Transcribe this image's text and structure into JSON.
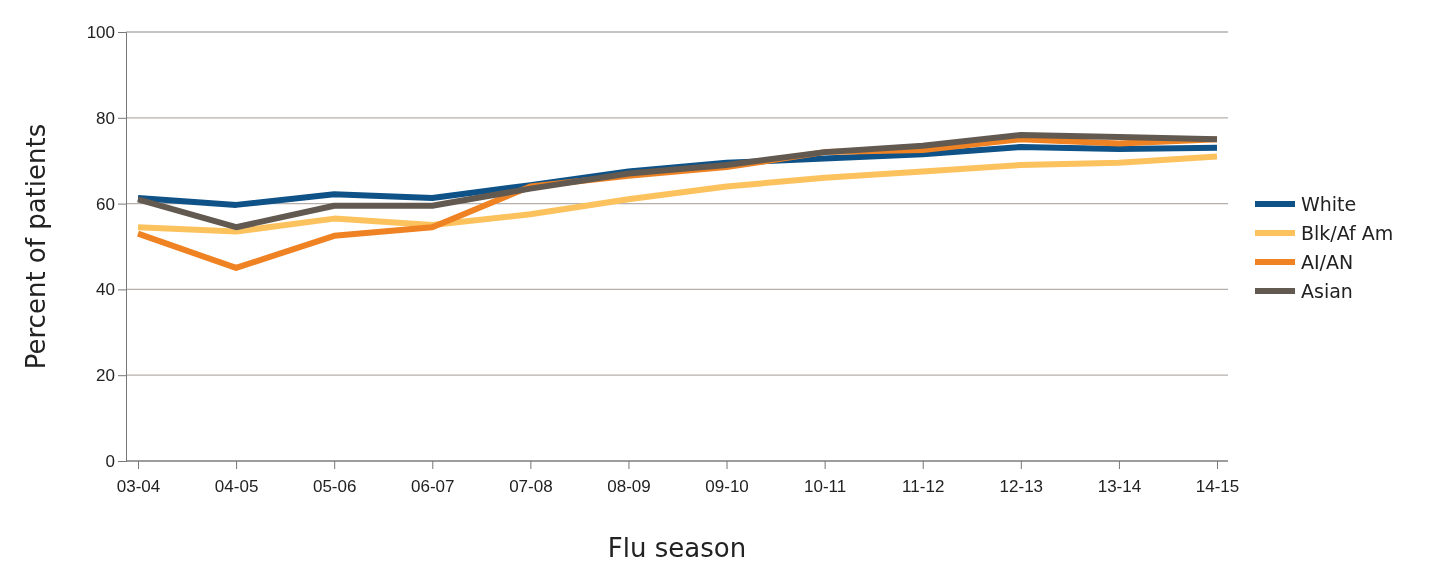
{
  "chart_data": {
    "type": "line",
    "xlabel": "Flu season",
    "ylabel": "Percent of patients",
    "categories": [
      "03-04",
      "04-05",
      "05-06",
      "06-07",
      "07-08",
      "08-09",
      "09-10",
      "10-11",
      "11-12",
      "12-13",
      "13-14",
      "14-15"
    ],
    "series": [
      {
        "name": "White",
        "color": "#0e5287",
        "values": [
          61.3,
          59.7,
          62.2,
          61.3,
          64.3,
          67.5,
          69.5,
          70.5,
          71.5,
          73.2,
          72.7,
          73
        ]
      },
      {
        "name": "Blk/Af Am",
        "color": "#fcc25e",
        "values": [
          54.5,
          53.5,
          56.5,
          55,
          57.5,
          61,
          64,
          66,
          67.5,
          69,
          69.5,
          71
        ]
      },
      {
        "name": "AI/AN",
        "color": "#ef8222",
        "values": [
          53,
          45,
          52.5,
          54.5,
          64,
          66.5,
          68.5,
          72,
          72.5,
          75,
          74,
          75
        ]
      },
      {
        "name": "Asian",
        "color": "#625951",
        "values": [
          61,
          54.5,
          59.5,
          59.5,
          63.5,
          67,
          69,
          72,
          73.5,
          76,
          75.5,
          75
        ]
      }
    ],
    "ylim": [
      0,
      100
    ],
    "yticks": [
      0,
      20,
      40,
      60,
      80,
      100
    ],
    "grid": "y",
    "legend": "right",
    "line_style": "solid",
    "marker": "none"
  }
}
